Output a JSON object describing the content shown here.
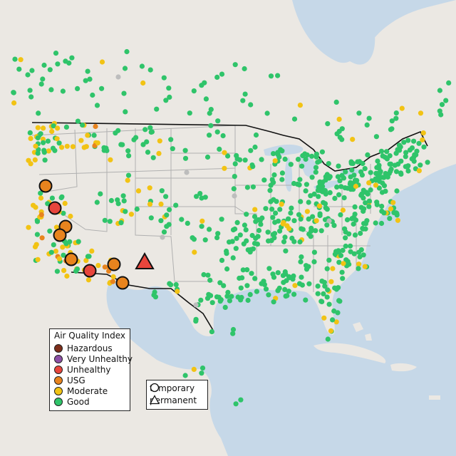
{
  "legend": {
    "title": "Air Quality Index",
    "categories": [
      {
        "key": "hazardous",
        "label": "Hazardous",
        "color": "#7e2e1a"
      },
      {
        "key": "very_unhealthy",
        "label": "Very Unhealthy",
        "color": "#8c4fa6"
      },
      {
        "key": "unhealthy",
        "label": "Unhealthy",
        "color": "#e8453c"
      },
      {
        "key": "usg",
        "label": "USG",
        "color": "#e8841e"
      },
      {
        "key": "moderate",
        "label": "Moderate",
        "color": "#f2c314"
      },
      {
        "key": "good",
        "label": "Good",
        "color": "#2fc46a"
      }
    ]
  },
  "type_legend": {
    "temporary_label": "temporary",
    "permanent_label": "permanent"
  },
  "colors": {
    "water": "#c6d8e8",
    "land": "#ebe8e3",
    "border": "#111111",
    "state_lines": "#b0b0b0",
    "no_data": "#bdbdbd"
  },
  "large_markers": [
    {
      "name": "large-marker-n-california",
      "category": "usg",
      "type": "temporary"
    },
    {
      "name": "large-marker-reno",
      "category": "unhealthy",
      "type": "temporary"
    },
    {
      "name": "large-marker-sierra-1",
      "category": "usg",
      "type": "temporary"
    },
    {
      "name": "large-marker-sierra-2",
      "category": "usg",
      "type": "temporary"
    },
    {
      "name": "large-marker-los-angeles",
      "category": "usg",
      "type": "temporary"
    },
    {
      "name": "large-marker-san-diego",
      "category": "unhealthy",
      "type": "temporary"
    },
    {
      "name": "large-marker-phoenix",
      "category": "usg",
      "type": "temporary"
    },
    {
      "name": "large-marker-tucson",
      "category": "usg",
      "type": "temporary"
    },
    {
      "name": "large-marker-new-mexico",
      "category": "unhealthy",
      "type": "permanent"
    }
  ]
}
